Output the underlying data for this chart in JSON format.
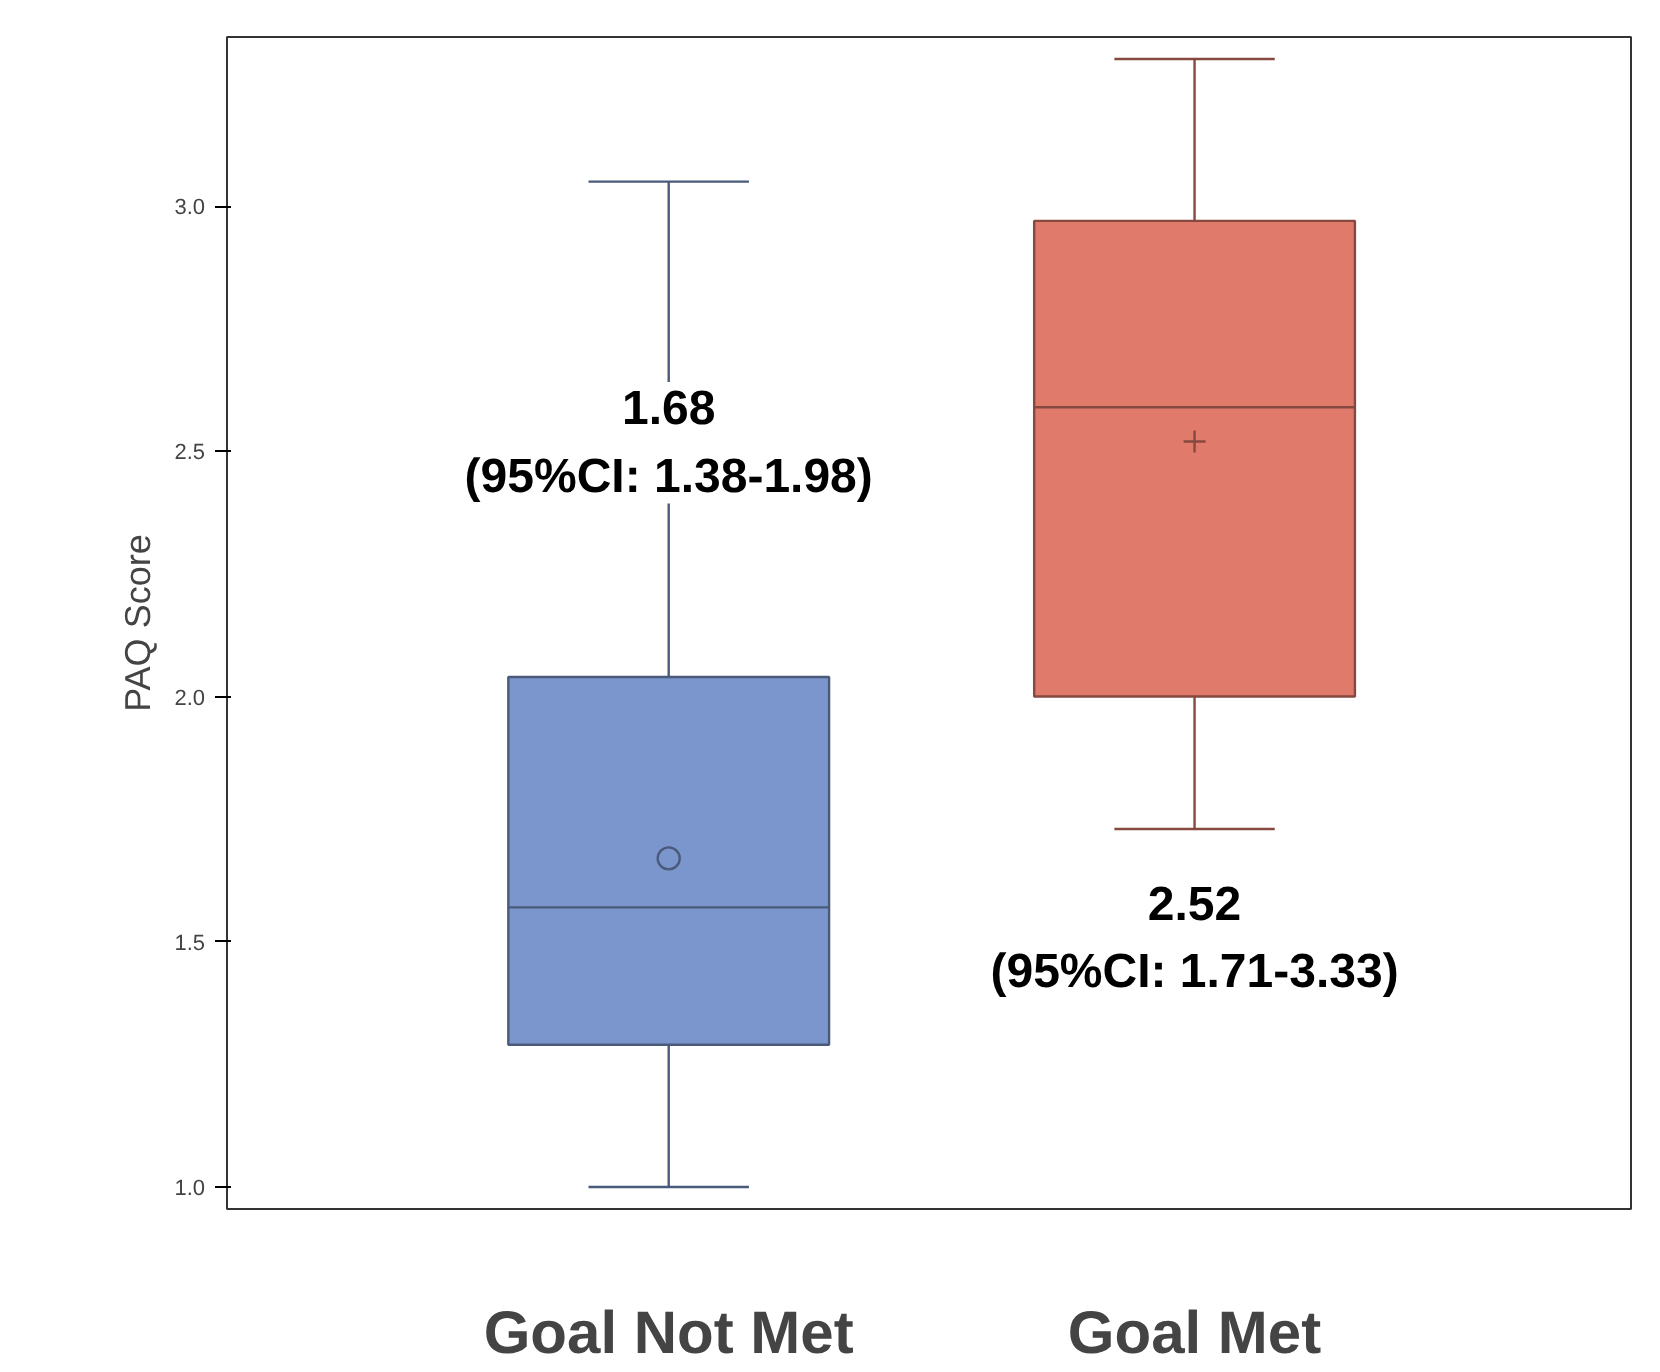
{
  "chart_data": {
    "type": "box",
    "ylabel": "PAQ Score",
    "categories": [
      "Goal Not Met",
      "Goal Met"
    ],
    "series": [
      {
        "color": "#7b96cc",
        "marker": "circle",
        "boxes": [
          {
            "low": 1.0,
            "q1": 1.29,
            "median": 1.57,
            "q3": 2.04,
            "high": 3.05,
            "mean": 1.67
          },
          null
        ]
      },
      {
        "color": "#e07b6c",
        "marker": "cross",
        "boxes": [
          null,
          {
            "low": 1.73,
            "q1": 2.0,
            "median": 2.59,
            "q3": 2.97,
            "high": 3.3,
            "mean": 2.52
          }
        ]
      }
    ],
    "ylim": [
      0.955,
      3.345
    ],
    "yticks": [
      {
        "value": 1,
        "label": "1.0"
      },
      1.5,
      {
        "value": 2,
        "label": "2.0"
      },
      2.5,
      {
        "value": 3,
        "label": "3.0"
      }
    ],
    "annotations": [
      "1.68\n(95%CI: 1.38-1.98)",
      "2.52\n(95%CI: 1.71-3.33)"
    ],
    "grid": false
  }
}
